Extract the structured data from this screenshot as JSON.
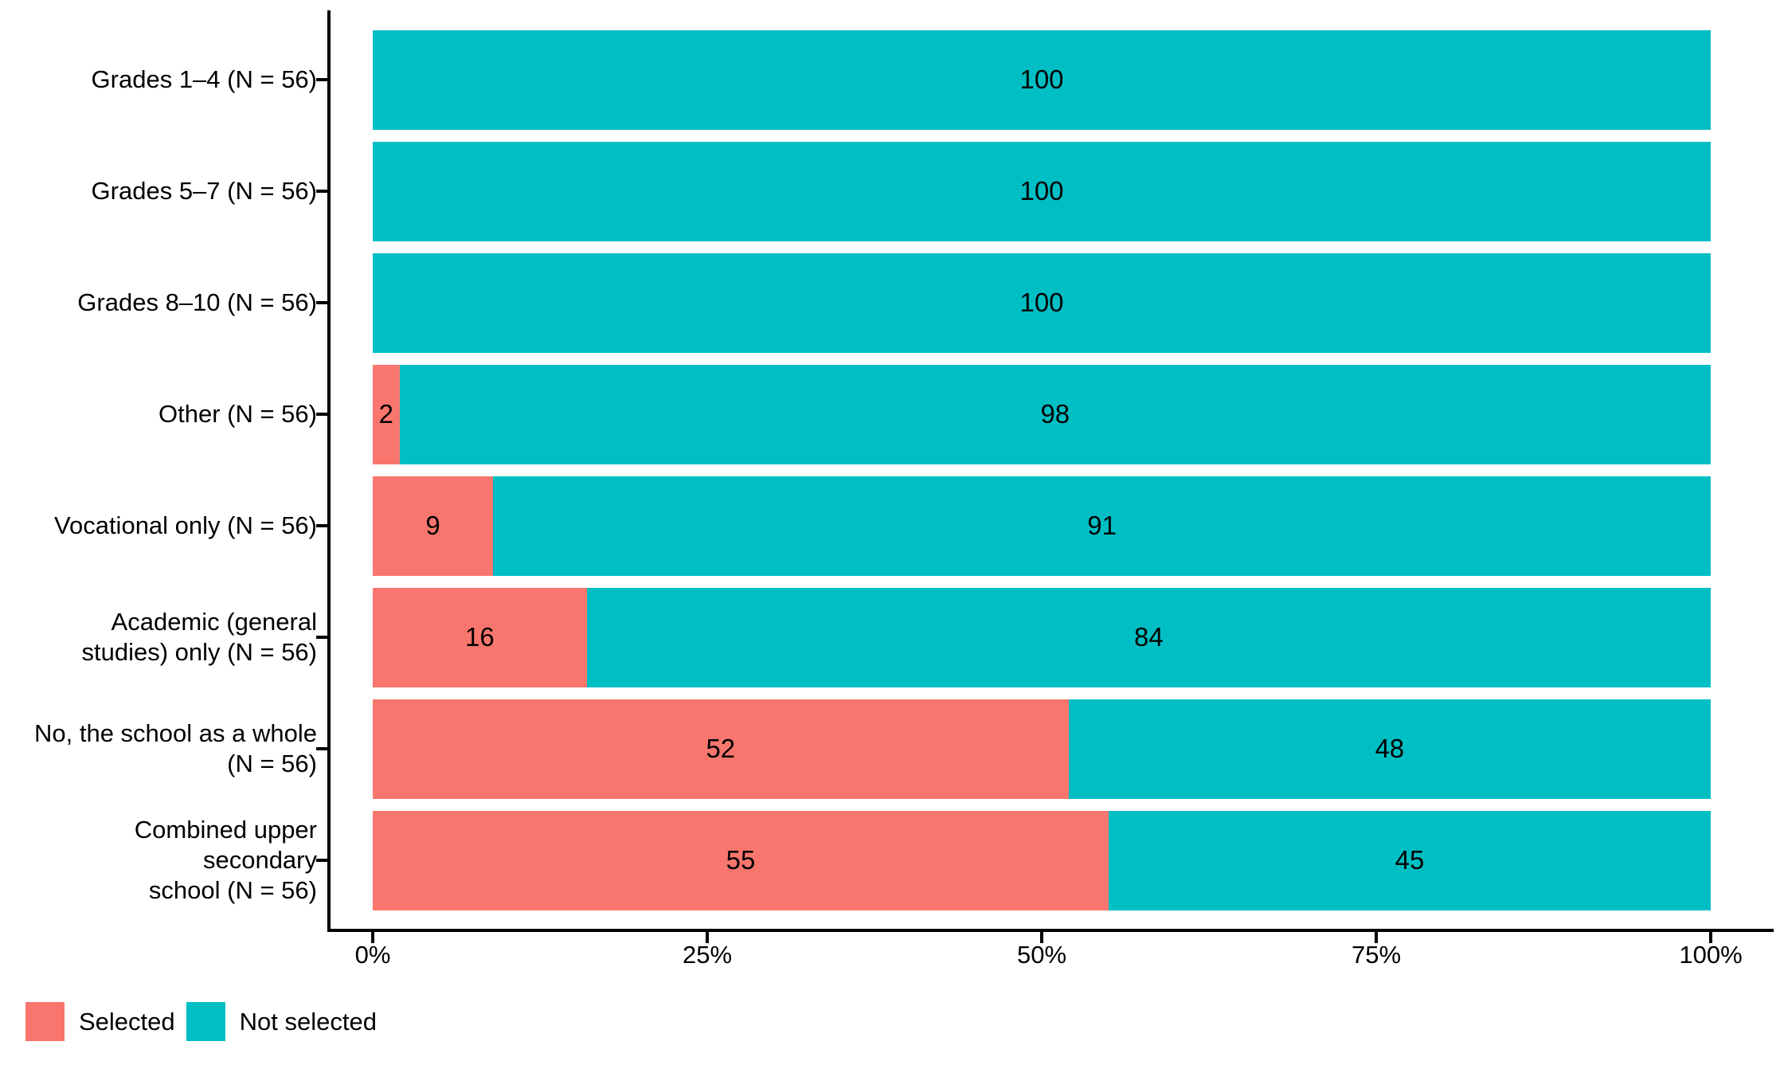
{
  "chart_data": {
    "type": "bar",
    "orientation": "horizontal",
    "stacked": true,
    "title": "",
    "xlabel": "",
    "ylabel": "",
    "categories": [
      "Grades 1–4 (N = 56)",
      "Grades 5–7 (N = 56)",
      "Grades 8–10 (N = 56)",
      "Other (N = 56)",
      "Vocational only (N = 56)",
      "Academic (general\nstudies) only (N = 56)",
      "No, the school as a whole\n(N = 56)",
      "Combined upper secondary\nschool (N = 56)"
    ],
    "series": [
      {
        "name": "Selected",
        "color": "#F8766D",
        "values": [
          0,
          0,
          0,
          2,
          9,
          16,
          52,
          55
        ]
      },
      {
        "name": "Not selected",
        "color": "#00BFC4",
        "values": [
          100,
          100,
          100,
          98,
          91,
          84,
          48,
          45
        ]
      }
    ],
    "x_axis": {
      "range": [
        0,
        100
      ],
      "tick_values": [
        0,
        25,
        50,
        75,
        100
      ],
      "tick_labels": [
        "0%",
        "25%",
        "50%",
        "75%",
        "100%"
      ]
    },
    "bar_value_labels": {
      "shown": true,
      "color": "#000000"
    },
    "legend": {
      "position": "bottom-left",
      "entries": [
        "Selected",
        "Not selected"
      ]
    },
    "grid": false
  }
}
